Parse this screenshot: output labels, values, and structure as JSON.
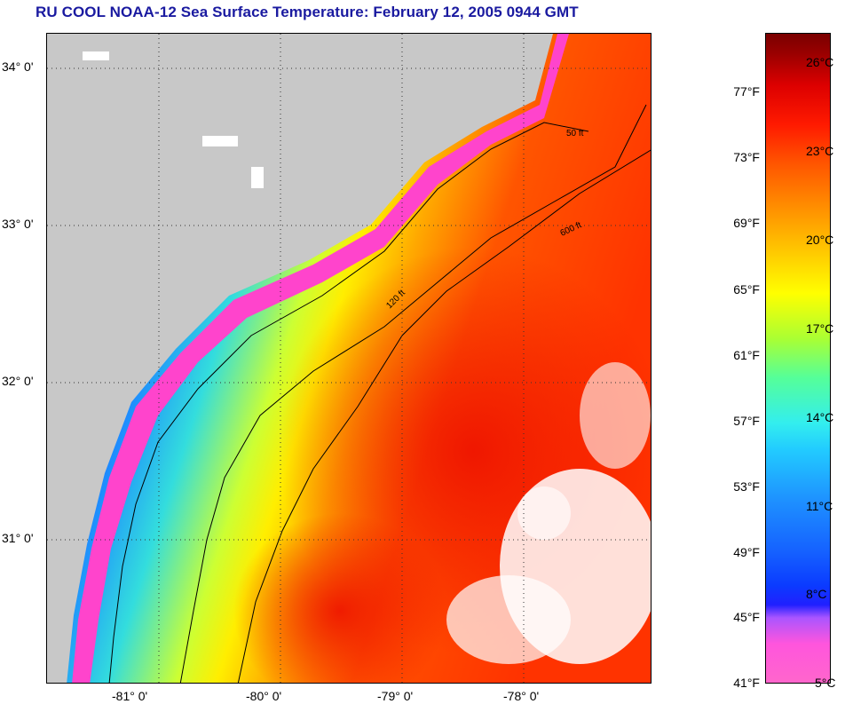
{
  "title": "RU COOL  NOAA-12  Sea Surface Temperature:  February 12, 2005 0944 GMT",
  "map": {
    "lat_labels": [
      "34° 0'",
      "33° 0'",
      "32° 0'",
      "31° 0'"
    ],
    "lon_labels": [
      "-81° 0'",
      "-80° 0'",
      "-79° 0'",
      "-78° 0'"
    ],
    "contour_labels": [
      "50 ft",
      "120 ft",
      "600 ft"
    ],
    "colors": {
      "land": "#c8c8c8",
      "cloud": "#ffffff",
      "cold": "#ff44cc",
      "cool": "#0a3cff",
      "mid": "#22ccff",
      "warm": "#ffee00",
      "hot": "#ff3300"
    }
  },
  "colorbar": {
    "fahrenheit": [
      "41°F",
      "45°F",
      "49°F",
      "53°F",
      "57°F",
      "61°F",
      "65°F",
      "69°F",
      "73°F",
      "77°F"
    ],
    "celsius": [
      "5°C",
      "8°C",
      "11°C",
      "14°C",
      "17°C",
      "20°C",
      "23°C",
      "26°C"
    ]
  }
}
